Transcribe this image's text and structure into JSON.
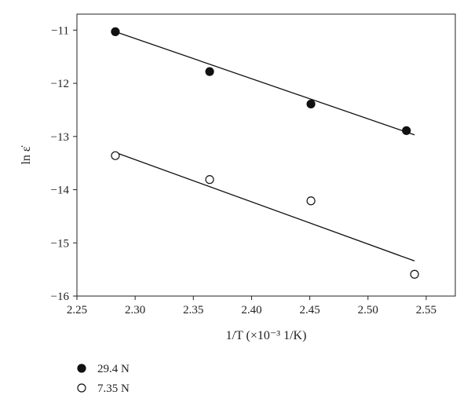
{
  "chart_data": {
    "type": "scatter",
    "xlabel": "1/T (×10⁻³ 1/K)",
    "ylabel": "ln ε̇",
    "xlim": [
      2.25,
      2.575
    ],
    "ylim": [
      -16,
      -10.7
    ],
    "xticks": [
      2.25,
      2.3,
      2.35,
      2.4,
      2.45,
      2.5,
      2.55
    ],
    "xtick_labels": [
      "2.25",
      "2.30",
      "2.35",
      "2.40",
      "2.45",
      "2.50",
      "2.55"
    ],
    "yticks": [
      -11,
      -12,
      -13,
      -14,
      -15,
      -16
    ],
    "ytick_labels": [
      "−11",
      "−12",
      "−13",
      "−14",
      "−15",
      "−16"
    ],
    "grid": false,
    "legend_position": "below-left",
    "series": [
      {
        "name": "29.4 N",
        "marker": "filled-circle",
        "x": [
          2.283,
          2.364,
          2.451,
          2.533
        ],
        "y": [
          -11.03,
          -11.78,
          -12.39,
          -12.89
        ],
        "fit": {
          "x": [
            2.283,
            2.54
          ],
          "y": [
            -11.03,
            -12.97
          ]
        }
      },
      {
        "name": "7.35 N",
        "marker": "open-circle",
        "x": [
          2.283,
          2.364,
          2.451,
          2.54
        ],
        "y": [
          -13.36,
          -13.81,
          -14.21,
          -15.59
        ],
        "fit": {
          "x": [
            2.283,
            2.54
          ],
          "y": [
            -13.3,
            -15.34
          ]
        }
      }
    ]
  }
}
